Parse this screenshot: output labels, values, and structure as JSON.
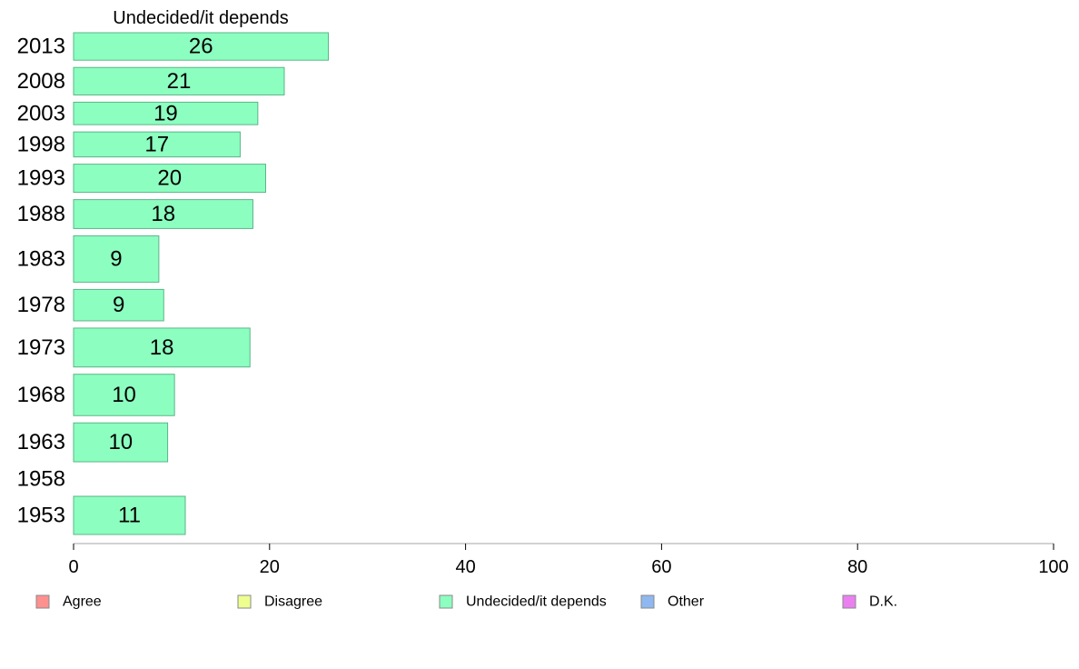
{
  "chart_data": {
    "type": "bar",
    "orientation": "horizontal",
    "title": "Undecided/it depends",
    "categories": [
      "2013",
      "2008",
      "2003",
      "1998",
      "1993",
      "1988",
      "1983",
      "1978",
      "1973",
      "1968",
      "1963",
      "1958",
      "1953"
    ],
    "values": [
      26,
      21,
      19,
      17,
      20,
      18,
      9,
      9,
      18,
      10,
      10,
      null,
      11
    ],
    "bar_lengths": [
      26,
      21.5,
      18.8,
      17,
      19.6,
      18.3,
      8.7,
      9.2,
      18,
      10.3,
      9.6,
      null,
      11.4
    ],
    "bar_relative_widths": [
      0.77,
      0.77,
      0.63,
      0.7,
      0.79,
      0.81,
      1.3,
      0.88,
      1.09,
      1.16,
      1.09,
      0,
      1.07
    ],
    "xlim": [
      0,
      100
    ],
    "xticks": [
      0,
      20,
      40,
      60,
      80,
      100
    ],
    "bar_color": "#8cffc0",
    "legend_position": "bottom",
    "legend": [
      {
        "label": "Agree",
        "color": "#ff9090"
      },
      {
        "label": "Disagree",
        "color": "#eeff90"
      },
      {
        "label": "Undecided/it depends",
        "color": "#8cffc0"
      },
      {
        "label": "Other",
        "color": "#90b8f0"
      },
      {
        "label": "D.K.",
        "color": "#ea80f0"
      }
    ]
  }
}
